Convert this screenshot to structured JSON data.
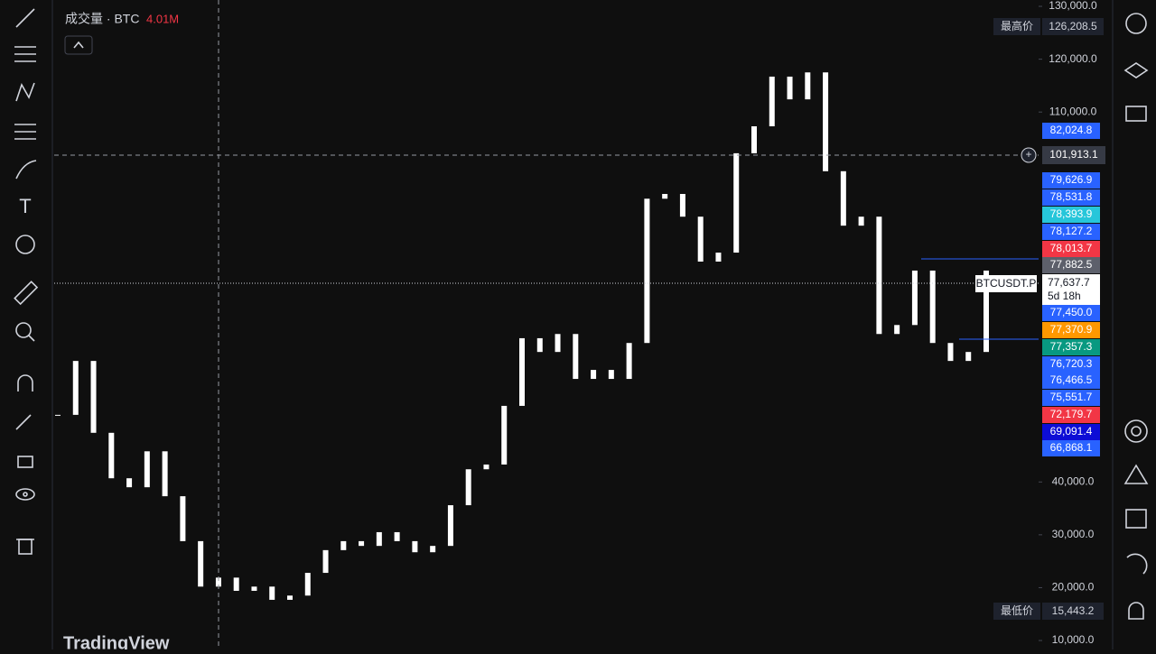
{
  "legend": {
    "volume_label": "成交量 · BTC",
    "volume_value": "4.01M"
  },
  "chart_data": {
    "type": "candlestick",
    "values": [
      52700,
      62900,
      49300,
      40700,
      39000,
      45800,
      37300,
      28800,
      20200,
      21900,
      19400,
      20200,
      17700,
      18500,
      22800,
      27100,
      28800,
      27900,
      30500,
      28800,
      26700,
      27900,
      35600,
      42400,
      43300,
      54400,
      67200,
      64600,
      68000,
      59500,
      61200,
      59500,
      66300,
      93600,
      94500,
      90200,
      81700,
      83400,
      102200,
      107300,
      116700,
      112400,
      117500,
      98800,
      88500,
      90200,
      68000,
      69700,
      80000,
      66300,
      62900,
      64600,
      80000
    ],
    "ylim": [
      8300,
      131200
    ],
    "yticks": [
      {
        "value": 10000,
        "label": "10,000.0"
      },
      {
        "value": 20000,
        "label": "20,000.0"
      },
      {
        "value": 30000,
        "label": "30,000.0"
      },
      {
        "value": 40000,
        "label": "40,000.0"
      },
      {
        "value": 110000,
        "label": "110,000.0"
      },
      {
        "value": 120000,
        "label": "120,000.0"
      },
      {
        "value": 130000,
        "label": "130,000.0"
      }
    ],
    "color": "#ffffff"
  },
  "high": {
    "label": "最高价",
    "value": "126,208.5"
  },
  "low": {
    "label": "最低价",
    "value": "15,443.2"
  },
  "crosshair_price": "101,913.1",
  "current": {
    "symbol": "BTCUSDT.P",
    "price": "77,637.7",
    "countdown": "5d 18h"
  },
  "price_labels": [
    {
      "label": "82,024.8",
      "color": "#2962ff"
    },
    {
      "label": "79,626.9",
      "color": "#2962ff"
    },
    {
      "label": "78,531.8",
      "color": "#2962ff"
    },
    {
      "label": "78,393.9",
      "color": "#26c6da"
    },
    {
      "label": "78,127.2",
      "color": "#2962ff"
    },
    {
      "label": "78,013.7",
      "color": "#f23645"
    },
    {
      "label": "77,882.5",
      "color": "#5d606b"
    },
    {
      "label": "77,450.0",
      "color": "#2962ff"
    },
    {
      "label": "77,370.9",
      "color": "#ff9800"
    },
    {
      "label": "77,357.3",
      "color": "#089981"
    },
    {
      "label": "76,720.3",
      "color": "#2962ff"
    },
    {
      "label": "76,466.5",
      "color": "#2962ff"
    },
    {
      "label": "75,551.7",
      "color": "#2962ff"
    },
    {
      "label": "72,179.7",
      "color": "#f23645"
    },
    {
      "label": "69,091.4",
      "color": "#0d0dd6"
    },
    {
      "label": "66,868.1",
      "color": "#2962ff"
    }
  ],
  "watermark": "TradingView"
}
